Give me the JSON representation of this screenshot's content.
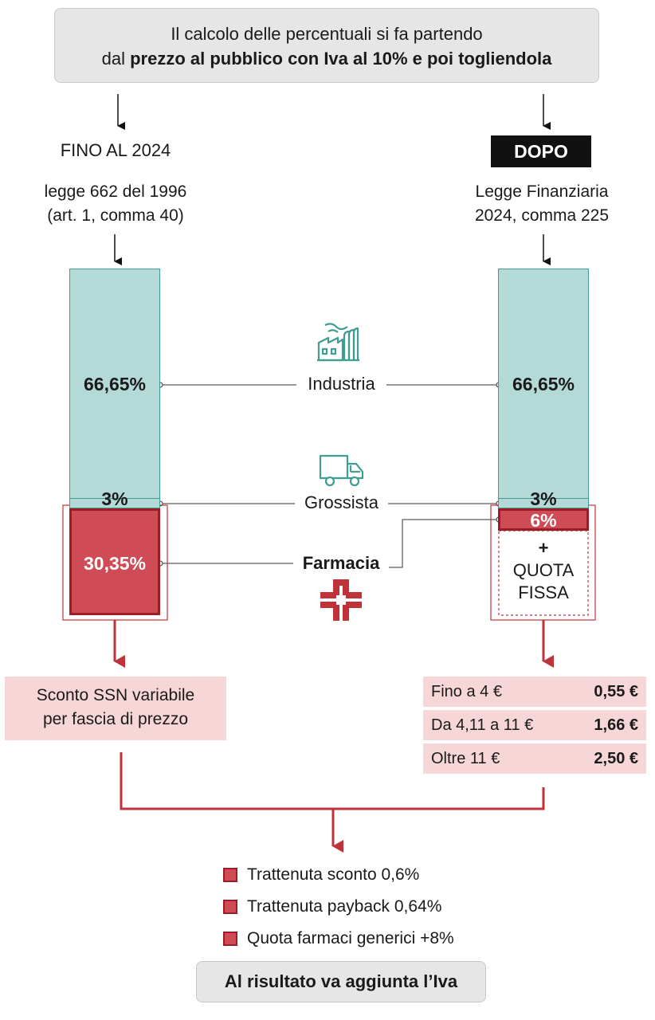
{
  "header": {
    "line1": "Il calcolo delle percentuali si fa partendo",
    "line2_prefix": "dal ",
    "line2_bold": "prezzo al pubblico con Iva al 10% e poi togliendola"
  },
  "left": {
    "title": "FINO AL 2024",
    "law_line1": "legge 662 del 1996",
    "law_line2": "(art. 1, comma 40)",
    "industria_pct": "66,65%",
    "grossista_pct": "3%",
    "farmacia_pct": "30,35%",
    "discount_line1": "Sconto SSN variabile",
    "discount_line2": "per fascia di prezzo"
  },
  "right": {
    "title": "DOPO",
    "law_line1": "Legge Finanziaria",
    "law_line2": "2024, comma 225",
    "industria_pct": "66,65%",
    "grossista_pct": "3%",
    "farmacia_pct": "6%",
    "plus": "+",
    "quota_line1": "QUOTA",
    "quota_line2": "FISSA",
    "fees": [
      {
        "range": "Fino a 4 €",
        "amount": "0,55 €"
      },
      {
        "range": "Da 4,11 a 11 €",
        "amount": "1,66 €"
      },
      {
        "range": "Oltre 11 €",
        "amount": "2,50 €"
      }
    ]
  },
  "middle": {
    "industria": "Industria",
    "grossista": "Grossista",
    "farmacia": "Farmacia"
  },
  "legend": [
    "Trattenuta sconto 0,6%",
    "Trattenuta payback 0,64%",
    "Quota farmaci generici +8%"
  ],
  "footer": "Al risultato va aggiunta l’Iva",
  "colors": {
    "teal_fill": "#b4dad8",
    "teal_stroke": "#3f9d92",
    "red_fill": "#cf4b55",
    "red_dark": "#9b1d25",
    "pink": "#f6d6d6",
    "grey_box": "#e6e6e6"
  },
  "icons": [
    "factory-icon",
    "truck-icon",
    "pharmacy-cross-icon"
  ]
}
